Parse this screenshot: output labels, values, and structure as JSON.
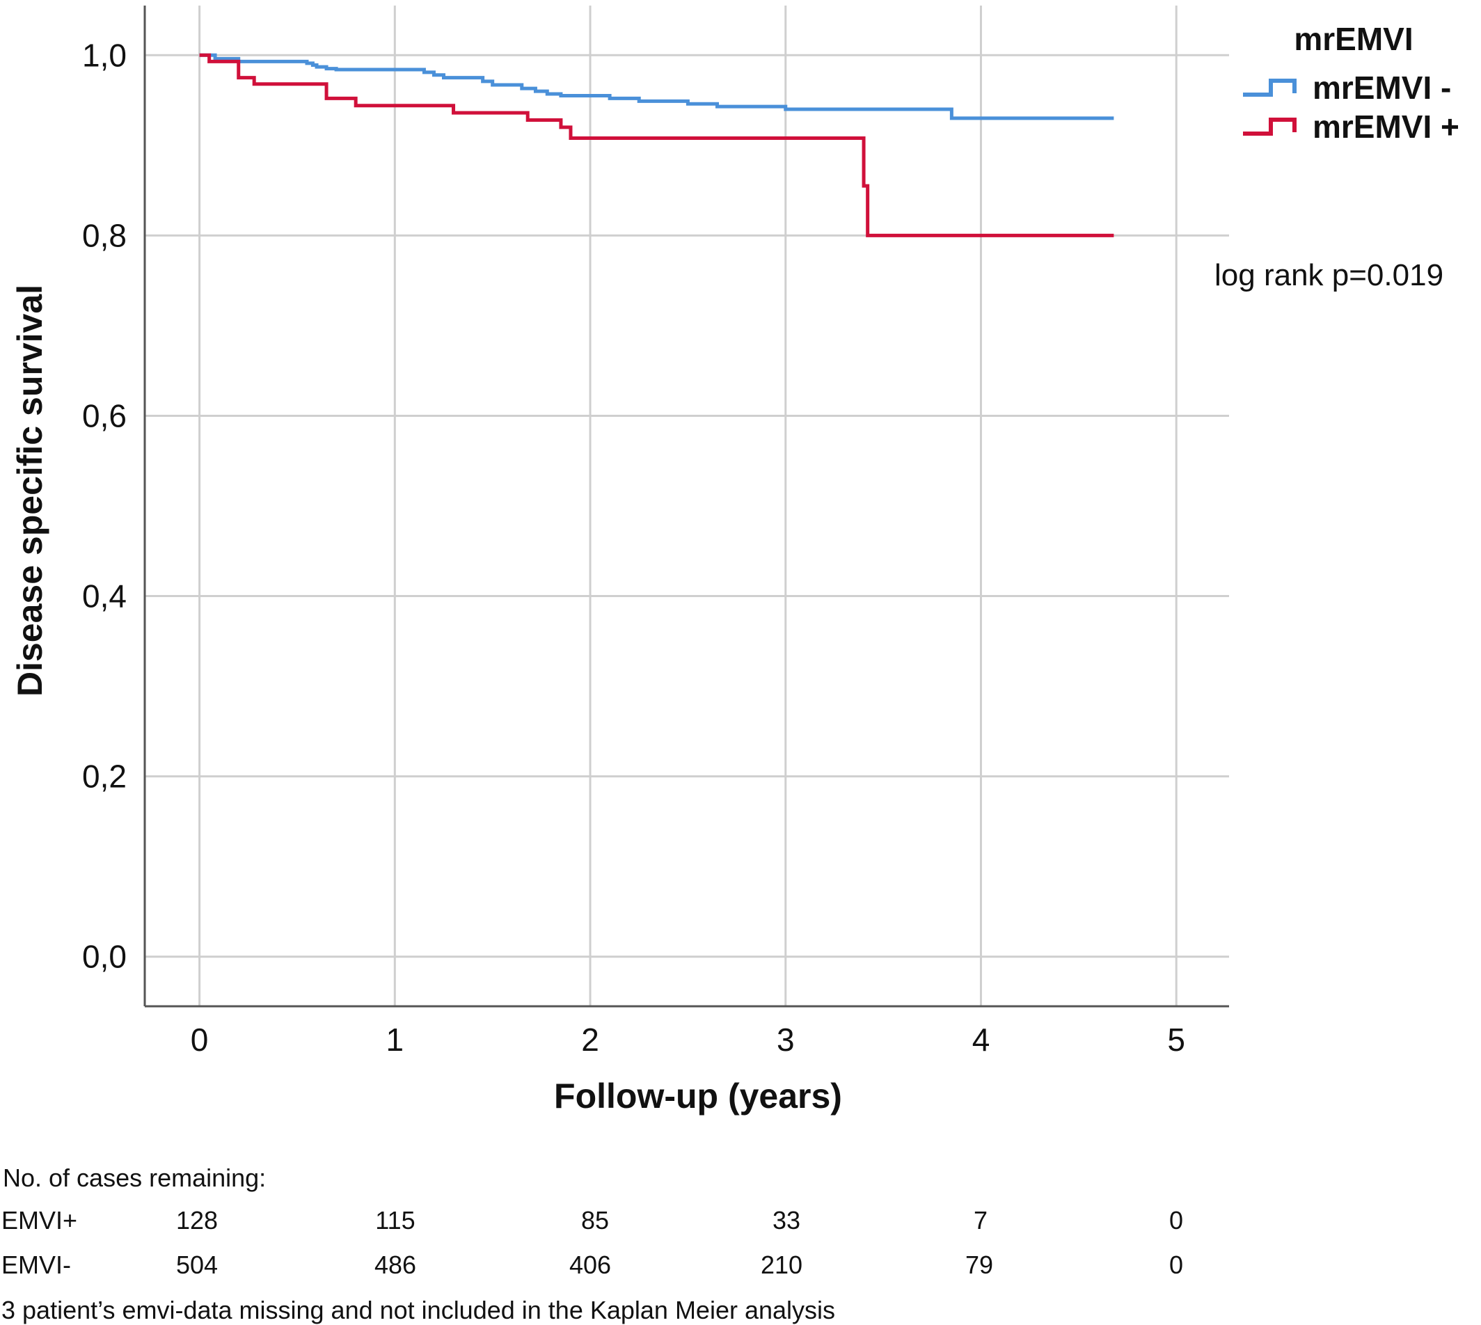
{
  "chart_data": {
    "type": "line",
    "step": true,
    "title": "",
    "xlabel": "Follow-up (years)",
    "ylabel": "Disease specific survival",
    "xlim": [
      -0.28,
      5.27
    ],
    "ylim": [
      -0.055,
      1.055
    ],
    "x_ticks": [
      0,
      1,
      2,
      3,
      4,
      5
    ],
    "x_tick_labels": [
      "0",
      "1",
      "2",
      "3",
      "4",
      "5"
    ],
    "y_ticks": [
      0.0,
      0.2,
      0.4,
      0.6,
      0.8,
      1.0
    ],
    "y_tick_labels": [
      "0,0",
      "0,2",
      "0,4",
      "0,6",
      "0,8",
      "1,0"
    ],
    "grid": true,
    "legend": {
      "title": "mrEMVI",
      "position": "top-right"
    },
    "annotation": "log rank p=0.019",
    "series": [
      {
        "name": "mrEMVI -",
        "color": "#4a90d9",
        "x": [
          0,
          0.08,
          0.2,
          0.55,
          0.58,
          0.6,
          0.65,
          0.7,
          1.15,
          1.2,
          1.25,
          1.45,
          1.5,
          1.65,
          1.72,
          1.78,
          1.85,
          1.95,
          2.1,
          2.25,
          2.5,
          2.65,
          3.0,
          3.2,
          3.4,
          3.6,
          3.8,
          3.85,
          4.68
        ],
        "y": [
          1.0,
          0.996,
          0.993,
          0.991,
          0.989,
          0.987,
          0.985,
          0.984,
          0.981,
          0.978,
          0.975,
          0.971,
          0.967,
          0.963,
          0.96,
          0.957,
          0.955,
          0.955,
          0.952,
          0.949,
          0.946,
          0.943,
          0.94,
          0.94,
          0.94,
          0.94,
          0.94,
          0.93,
          0.93
        ]
      },
      {
        "name": "mrEMVI +",
        "color": "#d0103a",
        "x": [
          0,
          0.05,
          0.2,
          0.28,
          0.65,
          0.68,
          0.8,
          1.3,
          1.68,
          1.85,
          1.9,
          3.4,
          3.42,
          4.68
        ],
        "y": [
          1.0,
          0.993,
          0.975,
          0.968,
          0.952,
          0.952,
          0.944,
          0.936,
          0.928,
          0.92,
          0.908,
          0.855,
          0.8,
          0.8
        ]
      }
    ]
  },
  "risk_table": {
    "heading": "No. of cases remaining:",
    "rows": [
      {
        "label": "EMVI+",
        "values": [
          "128",
          "115",
          "85",
          "33",
          "7",
          "0"
        ]
      },
      {
        "label": "EMVI-",
        "values": [
          "504",
          "486",
          "406",
          "210",
          "79",
          "0"
        ]
      }
    ],
    "footnote": "3 patient’s emvi-data missing and not included in the Kaplan Meier analysis"
  }
}
